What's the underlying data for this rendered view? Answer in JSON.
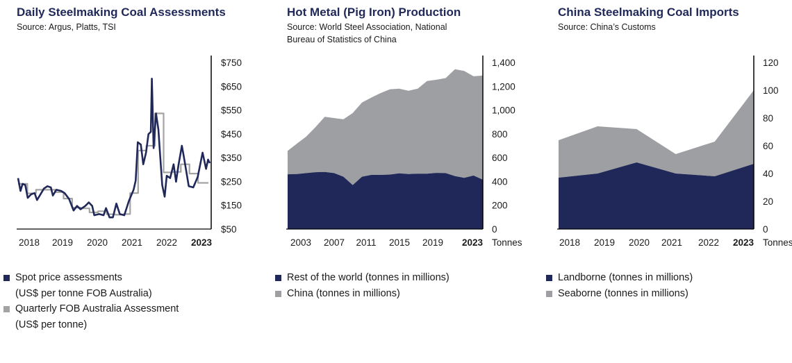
{
  "colors": {
    "navy": "#1f2858",
    "gray": "#9d9fa2",
    "quarterly_line": "#a3a3a3",
    "axis": "#000000"
  },
  "chart_data": [
    {
      "type": "line",
      "title": "Daily Steelmaking Coal Assessments",
      "source": "Source: Argus, Platts, TSI",
      "xlim": [
        2017.68,
        2023.28
      ],
      "ylim": [
        50,
        750
      ],
      "x_ticks": [
        2018,
        2019,
        2020,
        2021,
        2022,
        2023
      ],
      "x_tick_labels": [
        "2018",
        "2019",
        "2020",
        "2021",
        "2022",
        "2023"
      ],
      "y_ticks": [
        50,
        150,
        250,
        350,
        450,
        550,
        650,
        750
      ],
      "y_tick_labels": [
        "$50",
        "$150",
        "$250",
        "$350",
        "$450",
        "$550",
        "$650",
        "$750"
      ],
      "y_axis_position": "right",
      "grid": false,
      "legend": [
        "Spot price assessments",
        "(US$ per tonne FOB Australia)",
        "Quarterly FOB Australia Assessment",
        "(US$ per tonne)"
      ],
      "series": [
        {
          "name": "Spot price assessments (US$ per tonne FOB Australia)",
          "color": "#1f2858",
          "style": "line",
          "points": [
            [
              2017.68,
              264
            ],
            [
              2017.75,
              210
            ],
            [
              2017.81,
              240
            ],
            [
              2017.89,
              235
            ],
            [
              2017.96,
              181
            ],
            [
              2018.06,
              196
            ],
            [
              2018.16,
              201
            ],
            [
              2018.23,
              172
            ],
            [
              2018.33,
              196
            ],
            [
              2018.43,
              220
            ],
            [
              2018.53,
              230
            ],
            [
              2018.63,
              225
            ],
            [
              2018.69,
              191
            ],
            [
              2018.79,
              215
            ],
            [
              2018.93,
              210
            ],
            [
              2019.03,
              201
            ],
            [
              2019.16,
              176
            ],
            [
              2019.29,
              128
            ],
            [
              2019.39,
              147
            ],
            [
              2019.49,
              133
            ],
            [
              2019.63,
              147
            ],
            [
              2019.73,
              162
            ],
            [
              2019.83,
              147
            ],
            [
              2019.89,
              108
            ],
            [
              2020.03,
              113
            ],
            [
              2020.16,
              108
            ],
            [
              2020.23,
              138
            ],
            [
              2020.33,
              99
            ],
            [
              2020.43,
              99
            ],
            [
              2020.53,
              157
            ],
            [
              2020.63,
              113
            ],
            [
              2020.76,
              108
            ],
            [
              2020.89,
              167
            ],
            [
              2021.03,
              215
            ],
            [
              2021.09,
              254
            ],
            [
              2021.15,
              415
            ],
            [
              2021.24,
              405
            ],
            [
              2021.31,
              322
            ],
            [
              2021.39,
              371
            ],
            [
              2021.46,
              449
            ],
            [
              2021.53,
              458
            ],
            [
              2021.56,
              682
            ],
            [
              2021.61,
              390
            ],
            [
              2021.68,
              536
            ],
            [
              2021.75,
              468
            ],
            [
              2021.79,
              381
            ],
            [
              2021.86,
              235
            ],
            [
              2021.93,
              186
            ],
            [
              2021.99,
              274
            ],
            [
              2022.09,
              264
            ],
            [
              2022.19,
              322
            ],
            [
              2022.26,
              249
            ],
            [
              2022.33,
              317
            ],
            [
              2022.43,
              400
            ],
            [
              2022.49,
              351
            ],
            [
              2022.63,
              230
            ],
            [
              2022.76,
              225
            ],
            [
              2022.89,
              269
            ],
            [
              2023.03,
              371
            ],
            [
              2023.13,
              303
            ],
            [
              2023.19,
              342
            ],
            [
              2023.24,
              327
            ]
          ]
        },
        {
          "name": "Quarterly FOB Australia Assessment (US$ per tonne)",
          "color": "#a3a3a3",
          "style": "step",
          "points": [
            [
              2017.68,
              240
            ],
            [
              2017.95,
              200
            ],
            [
              2018.2,
              215
            ],
            [
              2018.5,
              215
            ],
            [
              2018.75,
              205
            ],
            [
              2019.0,
              178
            ],
            [
              2019.25,
              140
            ],
            [
              2019.5,
              137
            ],
            [
              2019.75,
              120
            ],
            [
              2020.0,
              125
            ],
            [
              2020.25,
              112
            ],
            [
              2020.5,
              110
            ],
            [
              2020.75,
              113
            ],
            [
              2020.93,
              201
            ],
            [
              2021.16,
              380
            ],
            [
              2021.4,
              400
            ],
            [
              2021.65,
              536
            ],
            [
              2021.9,
              288
            ],
            [
              2022.15,
              290
            ],
            [
              2022.4,
              322
            ],
            [
              2022.65,
              283
            ],
            [
              2022.9,
              244
            ],
            [
              2023.2,
              244
            ]
          ]
        }
      ]
    },
    {
      "type": "area",
      "stacked": true,
      "title": "Hot Metal (Pig Iron) Production",
      "source": "Source: World Steel Association, National Bureau of Statistics of China",
      "x": [
        2002,
        2003,
        2004,
        2005,
        2006,
        2007,
        2008,
        2009,
        2010,
        2011,
        2012,
        2013,
        2014,
        2015,
        2016,
        2017,
        2018,
        2019,
        2020,
        2021,
        2022,
        2023
      ],
      "x_tick_labels": [
        "2003",
        "2007",
        "2011",
        "2015",
        "2019",
        "2023"
      ],
      "ylim": [
        0,
        1400
      ],
      "y_ticks": [
        0,
        200,
        400,
        600,
        800,
        1000,
        1200,
        1400
      ],
      "y_tick_labels": [
        "0",
        "200",
        "400",
        "600",
        "800",
        "1,000",
        "1,200",
        "1,400"
      ],
      "y_unit": "Tonnes",
      "y_axis_position": "right",
      "grid": false,
      "series": [
        {
          "name": "Rest of the world (tonnes in millions)",
          "color": "#1f2858",
          "values": [
            460,
            462,
            470,
            478,
            480,
            470,
            440,
            370,
            440,
            455,
            455,
            458,
            468,
            462,
            465,
            465,
            472,
            470,
            445,
            430,
            450,
            415
          ]
        },
        {
          "name": "China (tonnes in millions)",
          "color": "#9d9fa2",
          "values": [
            197,
            256,
            307,
            379,
            463,
            463,
            482,
            605,
            623,
            650,
            688,
            717,
            712,
            700,
            715,
            779,
            783,
            799,
            898,
            899,
            834,
            875
          ]
        }
      ]
    },
    {
      "type": "area",
      "stacked": true,
      "title": "China Steelmaking Coal Imports",
      "source": "Source: China’s Customs",
      "x": [
        2018,
        2019,
        2020,
        2021,
        2022,
        2023
      ],
      "x_tick_labels": [
        "2018",
        "2019",
        "2020",
        "2021",
        "2022",
        "2023"
      ],
      "ylim": [
        0,
        120
      ],
      "y_ticks": [
        0,
        20,
        40,
        60,
        80,
        100,
        120
      ],
      "y_tick_labels": [
        "0",
        "20",
        "40",
        "60",
        "80",
        "100",
        "120"
      ],
      "y_unit": "Tonnes",
      "y_axis_position": "right",
      "grid": false,
      "series": [
        {
          "name": "Landborne (tonnes in millions)",
          "color": "#1f2858",
          "values": [
            37,
            40,
            48,
            40,
            38,
            47
          ]
        },
        {
          "name": "Seaborne (tonnes in millions)",
          "color": "#9d9fa2",
          "values": [
            27,
            34,
            24,
            14,
            25,
            53
          ]
        }
      ]
    }
  ]
}
